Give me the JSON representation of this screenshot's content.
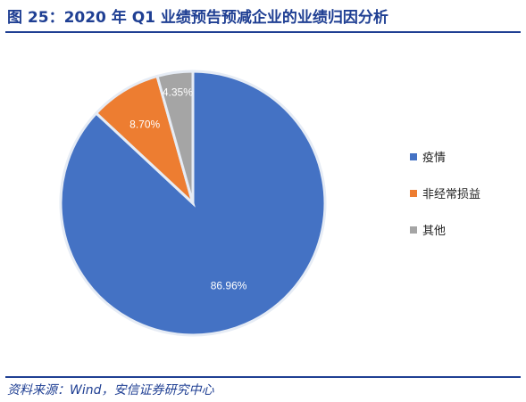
{
  "header": {
    "title": "图 25：2020 年 Q1 业绩预告预减企业的业绩归因分析"
  },
  "footer": {
    "source": "资料来源：Wind，安信证券研究中心"
  },
  "chart_data": {
    "type": "pie",
    "title": "",
    "categories": [
      "疫情",
      "非经常损益",
      "其他"
    ],
    "values": [
      86.96,
      8.7,
      4.35
    ],
    "labels": [
      "86.96%",
      "8.70%",
      "4.35%"
    ],
    "colors": [
      "#4472c4",
      "#ed7d31",
      "#a5a5a5"
    ],
    "legend_position": "right"
  }
}
